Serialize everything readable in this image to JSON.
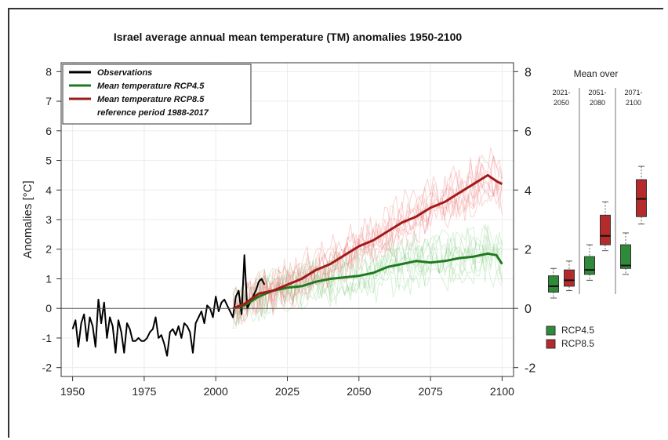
{
  "chart_data": {
    "type": "line",
    "title": "Israel average annual mean temperature (TM) anomalies 1950-2100",
    "ylabel": "Anomalies [°C]",
    "xlabel": "",
    "xlim": [
      1946,
      2104
    ],
    "ylim": [
      -2.3,
      8.3
    ],
    "x_ticks": [
      "1950",
      "1975",
      "2000",
      "2025",
      "2050",
      "2075",
      "2100"
    ],
    "y_ticks_left": [
      "-2",
      "-1",
      "0",
      "1",
      "2",
      "3",
      "4",
      "5",
      "6",
      "7",
      "8"
    ],
    "y_ticks_right": [
      "-2",
      "0",
      "2",
      "4",
      "6",
      "8"
    ],
    "grid": true,
    "legend_position": "top-left",
    "legend": [
      {
        "label": "Observations",
        "color": "#000000"
      },
      {
        "label": "Mean temperature RCP4.5",
        "color": "#1f7a1f"
      },
      {
        "label": "Mean temperature RCP8.5",
        "color": "#a11a1a"
      },
      {
        "label": "reference period 1988-2017",
        "color": ""
      }
    ],
    "series": [
      {
        "name": "Observations",
        "color": "#000000",
        "x": [
          1950,
          1951,
          1952,
          1953,
          1954,
          1955,
          1956,
          1957,
          1958,
          1959,
          1960,
          1961,
          1962,
          1963,
          1964,
          1965,
          1966,
          1967,
          1968,
          1969,
          1970,
          1971,
          1972,
          1973,
          1974,
          1975,
          1976,
          1977,
          1978,
          1979,
          1980,
          1981,
          1982,
          1983,
          1984,
          1985,
          1986,
          1987,
          1988,
          1989,
          1990,
          1991,
          1992,
          1993,
          1994,
          1995,
          1996,
          1997,
          1998,
          1999,
          2000,
          2001,
          2002,
          2003,
          2004,
          2005,
          2006,
          2007,
          2008,
          2009,
          2010,
          2011,
          2012,
          2013,
          2014,
          2015,
          2016,
          2017
        ],
        "values": [
          -0.7,
          -0.4,
          -1.3,
          -0.5,
          -0.2,
          -1.1,
          -0.3,
          -0.6,
          -1.3,
          0.3,
          -0.5,
          0.2,
          -1.0,
          -0.3,
          -0.6,
          -1.5,
          -0.4,
          -0.8,
          -1.5,
          -0.5,
          -0.7,
          -1.1,
          -1.1,
          -1.0,
          -1.1,
          -1.1,
          -1.0,
          -0.8,
          -0.7,
          -0.3,
          -1.0,
          -0.9,
          -1.2,
          -1.6,
          -0.8,
          -0.7,
          -0.9,
          -0.6,
          -1.0,
          -0.5,
          -0.6,
          -0.8,
          -1.5,
          -0.5,
          -0.3,
          -0.1,
          -0.5,
          0.1,
          0.0,
          -0.3,
          0.4,
          -0.1,
          0.2,
          0.3,
          0.1,
          -0.1,
          -0.3,
          0.4,
          0.6,
          -0.2,
          1.8,
          0.0,
          0.2,
          0.4,
          0.6,
          0.9,
          1.0,
          0.8
        ]
      },
      {
        "name": "Mean temperature RCP4.5",
        "color": "#1f7a1f",
        "x": [
          2006,
          2010,
          2015,
          2020,
          2025,
          2030,
          2035,
          2040,
          2045,
          2050,
          2055,
          2060,
          2065,
          2070,
          2075,
          2080,
          2085,
          2090,
          2095,
          2098,
          2100
        ],
        "values": [
          0.0,
          0.1,
          0.4,
          0.6,
          0.7,
          0.75,
          0.9,
          1.0,
          1.05,
          1.1,
          1.2,
          1.4,
          1.5,
          1.6,
          1.55,
          1.6,
          1.7,
          1.75,
          1.85,
          1.8,
          1.5
        ]
      },
      {
        "name": "Mean temperature RCP8.5",
        "color": "#a11a1a",
        "x": [
          2006,
          2010,
          2015,
          2020,
          2025,
          2030,
          2035,
          2040,
          2045,
          2050,
          2055,
          2060,
          2065,
          2070,
          2075,
          2080,
          2085,
          2090,
          2095,
          2098,
          2100
        ],
        "values": [
          0.0,
          0.15,
          0.5,
          0.6,
          0.8,
          1.0,
          1.3,
          1.5,
          1.8,
          2.1,
          2.3,
          2.6,
          2.9,
          3.1,
          3.4,
          3.6,
          3.9,
          4.2,
          4.5,
          4.3,
          4.2
        ]
      }
    ],
    "mean_over": {
      "title": "Mean  over",
      "periods": [
        "2021-2050",
        "2051-2080",
        "2071-2100"
      ],
      "boxes": [
        {
          "period": "2021-2050",
          "scenario": "RCP4.5",
          "min": 0.35,
          "q1": 0.55,
          "median": 0.75,
          "q3": 1.1,
          "max": 1.35
        },
        {
          "period": "2021-2050",
          "scenario": "RCP8.5",
          "min": 0.6,
          "q1": 0.75,
          "median": 0.95,
          "q3": 1.3,
          "max": 1.6
        },
        {
          "period": "2051-2080",
          "scenario": "RCP4.5",
          "min": 0.95,
          "q1": 1.15,
          "median": 1.3,
          "q3": 1.75,
          "max": 2.15
        },
        {
          "period": "2051-2080",
          "scenario": "RCP8.5",
          "min": 1.95,
          "q1": 2.15,
          "median": 2.45,
          "q3": 3.15,
          "max": 3.6
        },
        {
          "period": "2071-2100",
          "scenario": "RCP4.5",
          "min": 1.15,
          "q1": 1.35,
          "median": 1.45,
          "q3": 2.15,
          "max": 2.55
        },
        {
          "period": "2071-2100",
          "scenario": "RCP8.5",
          "min": 2.85,
          "q1": 3.1,
          "median": 3.7,
          "q3": 4.35,
          "max": 4.8
        }
      ],
      "legend": [
        {
          "label": "RCP4.5",
          "color": "#2e8b3a"
        },
        {
          "label": "RCP8.5",
          "color": "#b52a2a"
        }
      ]
    }
  }
}
